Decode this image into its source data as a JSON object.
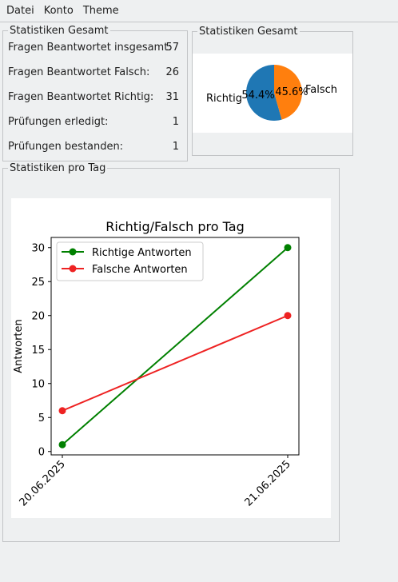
{
  "menu": {
    "items": [
      "Datei",
      "Konto",
      "Theme"
    ]
  },
  "stats_panel": {
    "title": "Statistiken Gesamt",
    "rows": [
      {
        "label": "Fragen Beantwortet insgesamt:",
        "value": "57"
      },
      {
        "label": "Fragen Beantwortet Falsch:",
        "value": "26"
      },
      {
        "label": "Fragen Beantwortet Richtig:",
        "value": "31"
      },
      {
        "label": "Prüfungen erledigt:",
        "value": "1"
      },
      {
        "label": "Prüfungen bestanden:",
        "value": "1"
      }
    ]
  },
  "pie_panel": {
    "title": "Statistiken Gesamt"
  },
  "daily_panel": {
    "title": "Statistiken pro Tag"
  },
  "colors": {
    "blue": "#1f77b4",
    "orange": "#ff7f0e",
    "green": "#008000",
    "red": "#ee2222"
  },
  "chart_data": [
    {
      "type": "pie",
      "labels": [
        "Richtig",
        "Falsch"
      ],
      "values": [
        54.4,
        45.6
      ],
      "pct_labels": [
        "54.4%",
        "45.6%"
      ]
    },
    {
      "type": "line",
      "title": "Richtig/Falsch pro Tag",
      "xlabel": "",
      "ylabel": "Antworten",
      "categories": [
        "20.06.2025",
        "21.06.2025"
      ],
      "series": [
        {
          "name": "Richtige Antworten",
          "values": [
            1,
            30
          ]
        },
        {
          "name": "Falsche Antworten",
          "values": [
            6,
            20
          ]
        }
      ],
      "ylim": [
        -0.5,
        31.5
      ],
      "yticks": [
        0,
        5,
        10,
        15,
        20,
        25,
        30
      ],
      "grid": false,
      "legend": "top-left"
    }
  ]
}
